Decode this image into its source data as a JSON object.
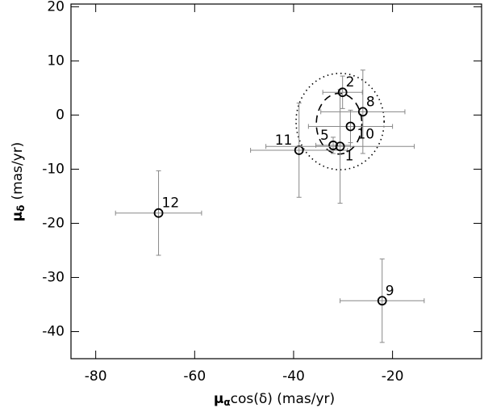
{
  "chart_data": {
    "type": "scatter",
    "xlabel": {
      "symbol": "μ",
      "subscript": "α",
      "text": "cos(δ) (mas/yr)"
    },
    "ylabel": {
      "symbol": "μ",
      "subscript": "δ",
      "text": "(mas/yr)"
    },
    "xlim": [
      -85,
      -2
    ],
    "ylim": [
      -45,
      20.5
    ],
    "xticks": [
      -80,
      -60,
      -40,
      -20
    ],
    "yticks": [
      -40,
      -30,
      -20,
      -10,
      0,
      10,
      20
    ],
    "color": "#000000",
    "errorbar_color": "#888888",
    "series": [
      {
        "name": null,
        "labels": [
          "12",
          "9",
          "11",
          "5",
          "1",
          "2",
          "8",
          "10"
        ],
        "x": [
          -67.3,
          -22.1,
          -38.9,
          -32.0,
          -30.6,
          -30.1,
          -26.0,
          -28.5
        ],
        "values": [
          -18.1,
          -34.3,
          -6.5,
          -5.6,
          -5.8,
          4.2,
          0.6,
          -2.1
        ],
        "xerr": [
          8.7,
          8.5,
          9.8,
          3.5,
          15.0,
          4.0,
          8.5,
          8.5
        ],
        "yerr": [
          7.8,
          7.7,
          8.7,
          1.5,
          10.5,
          3.0,
          7.7,
          3.0
        ]
      }
    ],
    "ellipses": [
      {
        "style": "dotted",
        "cx": -30.6,
        "cy": -1.2,
        "rx": 8.9,
        "ry": 8.9
      },
      {
        "style": "dashed",
        "cx": -30.8,
        "cy": -1.6,
        "rx": 4.6,
        "ry": 5.6
      }
    ]
  }
}
